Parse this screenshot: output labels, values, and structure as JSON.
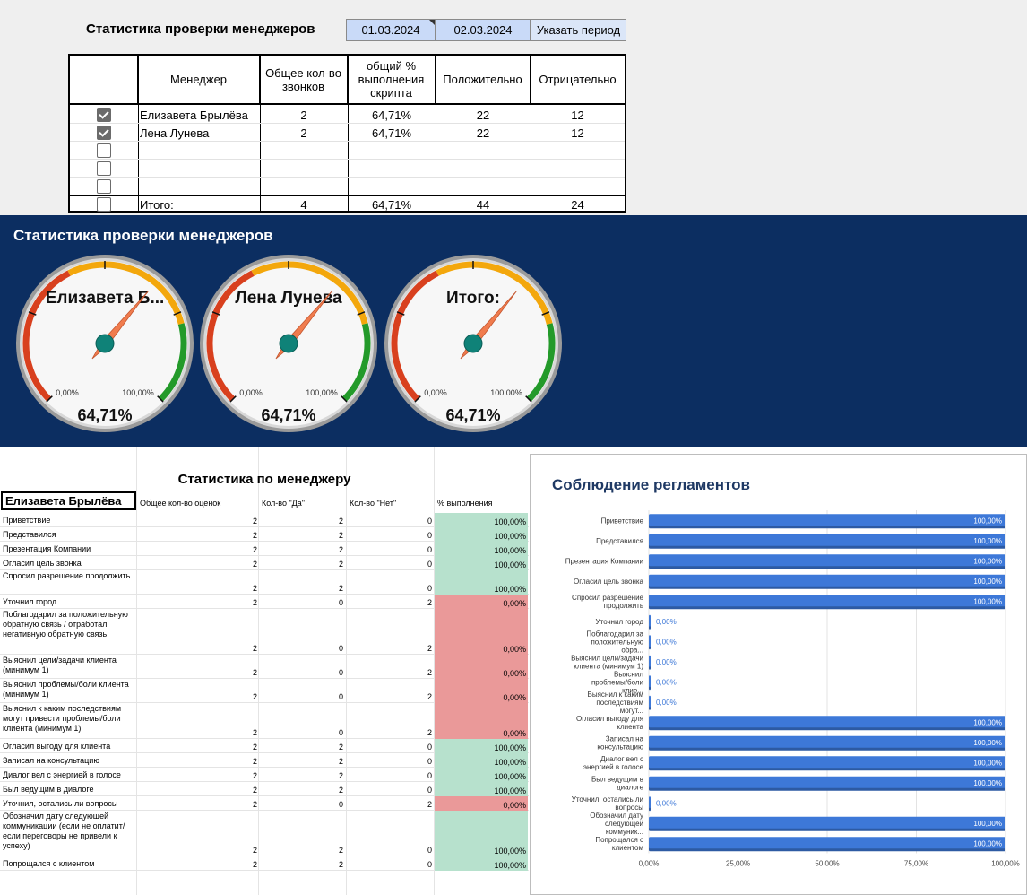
{
  "top": {
    "title": "Статистика проверки менеджеров",
    "date_from": "01.03.2024",
    "date_to": "02.03.2024",
    "period_button": "Указать период"
  },
  "manager_table": {
    "headers": [
      "Менеджер",
      "Общее кол-во звонков",
      "общий % выполнения скрипта",
      "Положительно",
      "Отрицательно"
    ],
    "rows": [
      {
        "checked": true,
        "name": "Елизавета Брылёва",
        "calls": "2",
        "pct": "64,71%",
        "pos": "22",
        "neg": "12"
      },
      {
        "checked": true,
        "name": "Лена Лунева",
        "calls": "2",
        "pct": "64,71%",
        "pos": "22",
        "neg": "12"
      },
      {
        "checked": false,
        "name": "",
        "calls": "",
        "pct": "",
        "pos": "",
        "neg": ""
      },
      {
        "checked": false,
        "name": "",
        "calls": "",
        "pct": "",
        "pos": "",
        "neg": ""
      },
      {
        "checked": false,
        "name": "",
        "calls": "",
        "pct": "",
        "pos": "",
        "neg": ""
      }
    ],
    "total": {
      "checked": false,
      "name": "Итого:",
      "calls": "4",
      "pct": "64,71%",
      "pos": "44",
      "neg": "24"
    }
  },
  "dashboard": {
    "title": "Статистика проверки менеджеров",
    "gauges": [
      {
        "label": "Елизавета Б...",
        "value": 0.6471,
        "value_text": "64,71%",
        "min_label": "0,00%",
        "max_label": "100,00%"
      },
      {
        "label": "Лена Лунева",
        "value": 0.6471,
        "value_text": "64,71%",
        "min_label": "0,00%",
        "max_label": "100,00%"
      },
      {
        "label": "Итого:",
        "value": 0.6471,
        "value_text": "64,71%",
        "min_label": "0,00%",
        "max_label": "100,00%"
      }
    ],
    "colors": {
      "bg": "#0c2e61",
      "red": "#d8401e",
      "orange": "#f3a70c",
      "green": "#239a2a",
      "needle": "#f07c4e",
      "hub": "#0f8278"
    }
  },
  "stats": {
    "title": "Статистика по менеджеру",
    "manager": "Елизавета Брылёва",
    "headers": [
      "Общее кол-во оценок",
      "Кол-во \"Да\"",
      "Кол-во \"Нет\"",
      "% выполнения"
    ],
    "rows": [
      {
        "label": "Приветствие",
        "total": "2",
        "yes": "2",
        "no": "0",
        "pct": "100,00%",
        "ok": true
      },
      {
        "label": "Представился",
        "total": "2",
        "yes": "2",
        "no": "0",
        "pct": "100,00%",
        "ok": true
      },
      {
        "label": "Презентация Компании",
        "total": "2",
        "yes": "2",
        "no": "0",
        "pct": "100,00%",
        "ok": true
      },
      {
        "label": "Огласил цель звонка",
        "total": "2",
        "yes": "2",
        "no": "0",
        "pct": "100,00%",
        "ok": true
      },
      {
        "label": "Спросил разрешение продолжить",
        "total": "2",
        "yes": "2",
        "no": "0",
        "pct": "100,00%",
        "ok": true
      },
      {
        "label": "Уточнил город",
        "total": "2",
        "yes": "0",
        "no": "2",
        "pct": "0,00%",
        "ok": false
      },
      {
        "label": "Поблагодарил за положительную обратную связь / отработал негативную обратную связь",
        "total": "2",
        "yes": "0",
        "no": "2",
        "pct": "0,00%",
        "ok": false
      },
      {
        "label": "Выяснил цели/задачи клиента (минимум 1)",
        "total": "2",
        "yes": "0",
        "no": "2",
        "pct": "0,00%",
        "ok": false
      },
      {
        "label": "Выяснил проблемы/боли клиента (минимум 1)",
        "total": "2",
        "yes": "0",
        "no": "2",
        "pct": "0,00%",
        "ok": false
      },
      {
        "label": "Выяснил к каким последствиям могут привести проблемы/боли клиента (минимум 1)",
        "total": "2",
        "yes": "0",
        "no": "2",
        "pct": "0,00%",
        "ok": false
      },
      {
        "label": "Огласил выгоду для клиента",
        "total": "2",
        "yes": "2",
        "no": "0",
        "pct": "100,00%",
        "ok": true
      },
      {
        "label": "Записал на консультацию",
        "total": "2",
        "yes": "2",
        "no": "0",
        "pct": "100,00%",
        "ok": true
      },
      {
        "label": "Диалог вел с энергией в голосе",
        "total": "2",
        "yes": "2",
        "no": "0",
        "pct": "100,00%",
        "ok": true
      },
      {
        "label": "Был ведущим в диалоге",
        "total": "2",
        "yes": "2",
        "no": "0",
        "pct": "100,00%",
        "ok": true
      },
      {
        "label": "Уточнил, остались ли вопросы",
        "total": "2",
        "yes": "0",
        "no": "2",
        "pct": "0,00%",
        "ok": false
      },
      {
        "label": "Обозначил дату следующей коммуникации (если не оплатит/если переговоры не привели к успеху)",
        "total": "2",
        "yes": "2",
        "no": "0",
        "pct": "100,00%",
        "ok": true
      },
      {
        "label": "Попрощался с клиентом",
        "total": "2",
        "yes": "2",
        "no": "0",
        "pct": "100,00%",
        "ok": true
      }
    ],
    "colors": {
      "ok": "#b7e1cd",
      "bad": "#ea9999"
    }
  },
  "chart_data": {
    "type": "bar",
    "orientation": "horizontal",
    "title": "Соблюдение регламентов",
    "categories": [
      "Приветствие",
      "Представился",
      "Презентация Компании",
      "Огласил цель звонка",
      "Спросил разрешение продолжить",
      "Уточнил город",
      "Поблагодарил за положительную обра...",
      "Выяснил цели/задачи клиента (минимум 1)",
      "Выяснил проблемы/боли клие...",
      "Выяснил к каким последствиям могут...",
      "Огласил выгоду для клиента",
      "Записал на консультацию",
      "Диалог вел с энергией в голосе",
      "Был ведущим в диалоге",
      "Уточнил, остались ли вопросы",
      "Обозначил дату следующей коммуник...",
      "Попрощался с клиентом"
    ],
    "values": [
      1,
      1,
      1,
      1,
      1,
      0,
      0,
      0,
      0,
      0,
      1,
      1,
      1,
      1,
      0,
      1,
      1
    ],
    "value_labels": [
      "100,00%",
      "100,00%",
      "100,00%",
      "100,00%",
      "100,00%",
      "0,00%",
      "0,00%",
      "0,00%",
      "0,00%",
      "0,00%",
      "100,00%",
      "100,00%",
      "100,00%",
      "100,00%",
      "0,00%",
      "100,00%",
      "100,00%"
    ],
    "xticks": [
      "0,00%",
      "25,00%",
      "50,00%",
      "75,00%",
      "100,00%"
    ],
    "xlim": [
      0,
      1
    ],
    "grid": true,
    "bar_color": "#3d78d8",
    "label_color_zero": "#3d78d8"
  }
}
